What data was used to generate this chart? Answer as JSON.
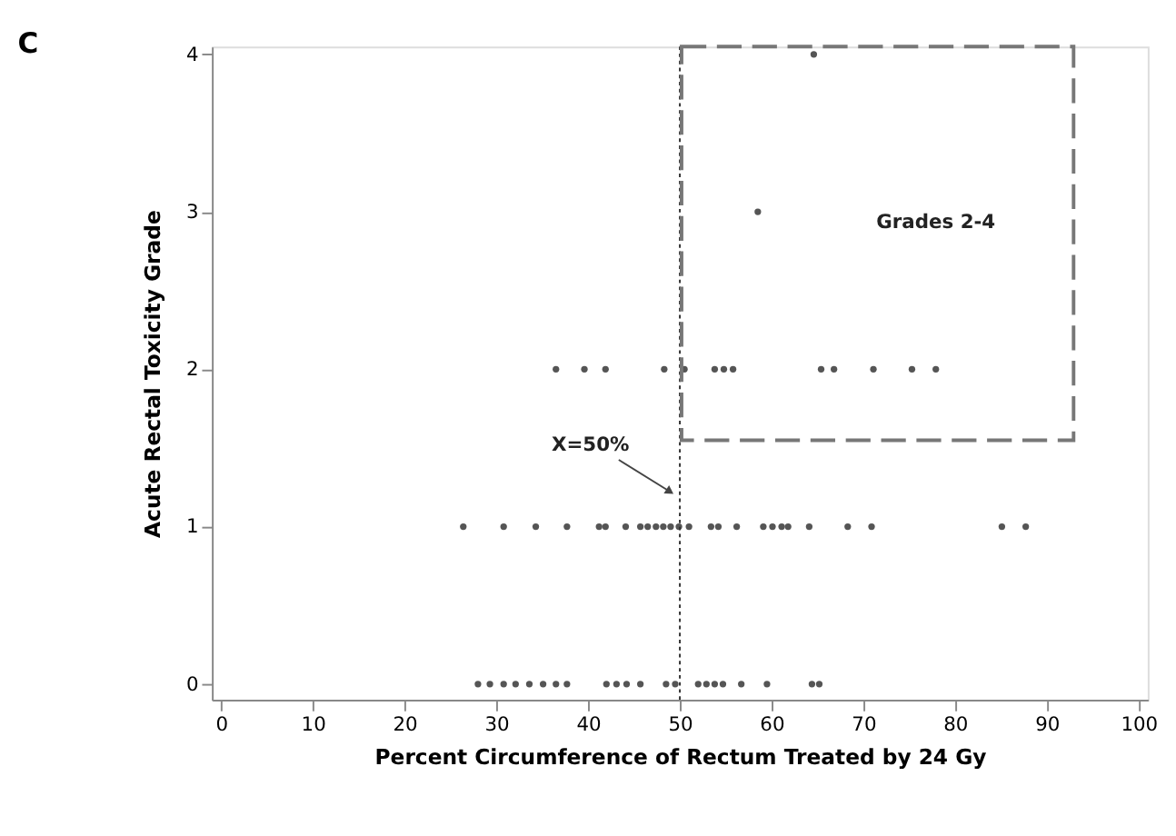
{
  "chart_data": {
    "type": "scatter",
    "title": "C",
    "xlabel": "Percent Circumference of Rectum Treated by 24 Gy",
    "ylabel": "Acute Rectal Toxicity Grade",
    "series": [
      {
        "color": "#555555",
        "x": [
          28,
          29.3,
          30.8,
          32.1,
          33.6,
          35.1,
          36.5,
          37.7,
          42.0,
          43.1,
          44.2,
          45.7,
          48.5,
          49.5,
          52.0,
          52.9,
          53.8,
          54.7,
          56.7,
          59.5,
          64.4,
          65.2
        ],
        "values": [
          0,
          0,
          0,
          0,
          0,
          0,
          0,
          0,
          0,
          0,
          0,
          0,
          0,
          0,
          0,
          0,
          0,
          0,
          0,
          0,
          0,
          0
        ]
      },
      {
        "color": "#555555",
        "x": [
          26.4,
          30.8,
          34.3,
          37.7,
          41.2,
          41.9,
          44.1,
          45.7,
          46.5,
          47.4,
          48.2,
          49.0,
          49.9,
          51.0,
          53.4,
          54.2,
          56.2,
          59.1,
          60.1,
          61.1,
          61.8,
          64.1,
          68.3,
          70.9,
          85.1,
          87.7
        ],
        "values": [
          1,
          1,
          1,
          1,
          1,
          1,
          1,
          1,
          1,
          1,
          1,
          1,
          1,
          1,
          1,
          1,
          1,
          1,
          1,
          1,
          1,
          1,
          1,
          1,
          1,
          1
        ]
      },
      {
        "color": "#555555",
        "x": [
          36.5,
          39.6,
          41.9,
          48.3,
          50.5,
          53.8,
          54.8,
          55.8,
          65.4,
          66.8,
          71.1,
          75.3,
          77.9
        ],
        "values": [
          2,
          2,
          2,
          2,
          2,
          2,
          2,
          2,
          2,
          2,
          2,
          2,
          2
        ]
      },
      {
        "color": "#555555",
        "x": [
          58.5,
          64.6
        ],
        "values": [
          3,
          4
        ]
      }
    ],
    "marker": "circle",
    "grid": false,
    "xlim": [
      -1,
      101
    ],
    "xticks": [
      0,
      10,
      20,
      30,
      40,
      50,
      60,
      70,
      80,
      90,
      100
    ],
    "ylim": [
      -0.1,
      4.05
    ],
    "yticks": [
      0,
      1,
      2,
      3,
      4
    ],
    "ref_lines": [
      {
        "axis": "x",
        "value": 50,
        "line_style": "dotted",
        "color": "#333333"
      }
    ],
    "annotations": [
      {
        "text": "X=50%",
        "x": 49.5,
        "y": 1.2
      },
      "Grades 2-4"
    ]
  }
}
